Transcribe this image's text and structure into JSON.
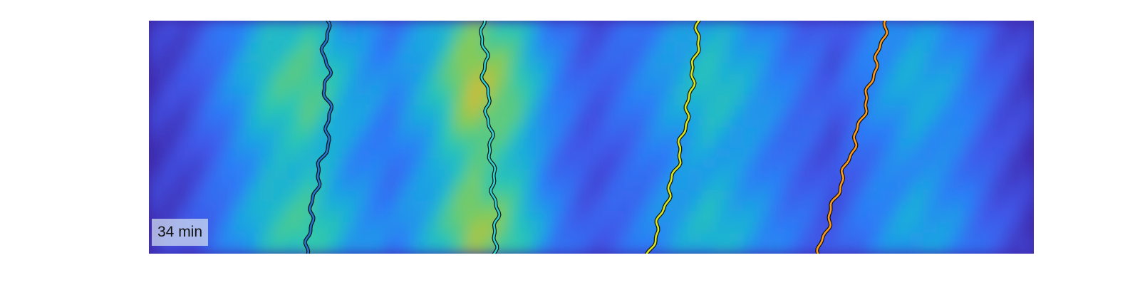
{
  "time_label": "34 min",
  "chart_data": {
    "type": "heatmap",
    "colormap": "parula",
    "colormap_stops": [
      "#3e26a8",
      "#4253e5",
      "#2c7cf7",
      "#1aa9df",
      "#2bc7b2",
      "#82cb5a",
      "#dbba31",
      "#fae01f",
      "#f9fb15"
    ],
    "intensity_columns": [
      0.06,
      0.12,
      0.3,
      0.52,
      0.6,
      0.4,
      0.28,
      0.45,
      0.74,
      0.62,
      0.3,
      0.14,
      0.24,
      0.38,
      0.5,
      0.38,
      0.24,
      0.14,
      0.3,
      0.42,
      0.34,
      0.16,
      0.06
    ],
    "intensity_rows": [
      0.62,
      0.72,
      0.86,
      0.94,
      0.88,
      0.74,
      0.6,
      0.55,
      0.66,
      0.8,
      0.86,
      0.7
    ],
    "tracks": [
      {
        "color": "#1f77d0",
        "x": [
          0.202,
          0.2,
          0.198,
          0.203,
          0.199,
          0.204,
          0.203,
          0.201,
          0.194,
          0.19,
          0.186,
          0.183,
          0.181,
          0.179
        ]
      },
      {
        "color": "#2fd4d0",
        "x": [
          0.376,
          0.378,
          0.38,
          0.379,
          0.382,
          0.383,
          0.385,
          0.386,
          0.388,
          0.389,
          0.391,
          0.393,
          0.392,
          0.389
        ]
      },
      {
        "color": "#d7e81c",
        "x": [
          0.622,
          0.62,
          0.618,
          0.614,
          0.612,
          0.609,
          0.605,
          0.601,
          0.597,
          0.591,
          0.585,
          0.578,
          0.572,
          0.566
        ]
      },
      {
        "color": "#ff9a1a",
        "x": [
          0.833,
          0.829,
          0.824,
          0.818,
          0.813,
          0.808,
          0.802,
          0.796,
          0.789,
          0.782,
          0.775,
          0.769,
          0.763,
          0.757
        ]
      }
    ]
  }
}
